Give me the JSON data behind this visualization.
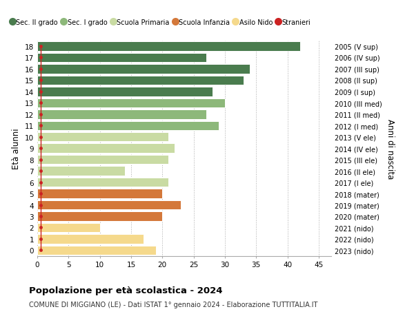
{
  "ages": [
    0,
    1,
    2,
    3,
    4,
    5,
    6,
    7,
    8,
    9,
    10,
    11,
    12,
    13,
    14,
    15,
    16,
    17,
    18
  ],
  "values": [
    19,
    17,
    10,
    20,
    23,
    20,
    21,
    14,
    21,
    22,
    21,
    29,
    27,
    30,
    28,
    33,
    34,
    27,
    42
  ],
  "bar_colors": [
    "#f5d98c",
    "#f5d98c",
    "#f5d98c",
    "#d4783a",
    "#d4783a",
    "#d4783a",
    "#c9dba3",
    "#c9dba3",
    "#c9dba3",
    "#c9dba3",
    "#c9dba3",
    "#8db87a",
    "#8db87a",
    "#8db87a",
    "#4a7c4e",
    "#4a7c4e",
    "#4a7c4e",
    "#4a7c4e",
    "#4a7c4e"
  ],
  "right_labels": [
    "2023 (nido)",
    "2022 (nido)",
    "2021 (nido)",
    "2020 (mater)",
    "2019 (mater)",
    "2018 (mater)",
    "2017 (I ele)",
    "2016 (II ele)",
    "2015 (III ele)",
    "2014 (IV ele)",
    "2013 (V ele)",
    "2012 (I med)",
    "2011 (II med)",
    "2010 (III med)",
    "2009 (I sup)",
    "2008 (II sup)",
    "2007 (III sup)",
    "2006 (IV sup)",
    "2005 (V sup)"
  ],
  "legend_labels": [
    "Sec. II grado",
    "Sec. I grado",
    "Scuola Primaria",
    "Scuola Infanzia",
    "Asilo Nido",
    "Stranieri"
  ],
  "legend_colors": [
    "#4a7c4e",
    "#8db87a",
    "#c9dba3",
    "#d4783a",
    "#f5d98c",
    "#cc2222"
  ],
  "ylabel": "Età alunni",
  "ylabel_right": "Anni di nascita",
  "title": "Popolazione per età scolastica - 2024",
  "subtitle": "COMUNE DI MIGGIANO (LE) - Dati ISTAT 1° gennaio 2024 - Elaborazione TUTTITALIA.IT",
  "xlim": [
    0,
    47
  ],
  "xticks": [
    0,
    5,
    10,
    15,
    20,
    25,
    30,
    35,
    40,
    45
  ],
  "background_color": "#ffffff"
}
